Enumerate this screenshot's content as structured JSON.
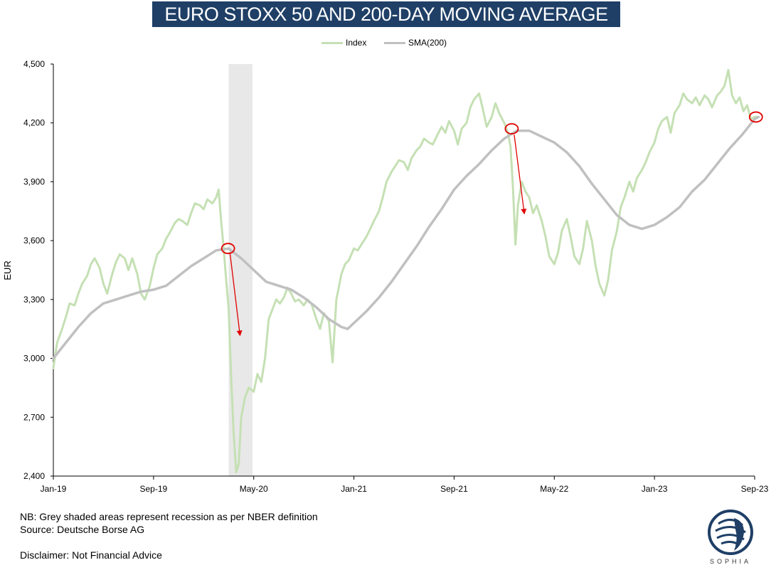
{
  "chart_data": {
    "type": "line",
    "title": "EURO STOXX 50 AND 200-DAY MOVING AVERAGE",
    "ylabel": "EUR",
    "xlabel": "",
    "ylim": [
      2400,
      4500
    ],
    "x_range": [
      "2019-01",
      "2023-09"
    ],
    "yticks": [
      2400,
      2700,
      3000,
      3300,
      3600,
      3900,
      4200,
      4500
    ],
    "ytick_labels": [
      "2,400",
      "2,700",
      "3,000",
      "3,300",
      "3,600",
      "3,900",
      "4,200",
      "4,500"
    ],
    "xticks": [
      {
        "label": "Jan-19",
        "m": 0
      },
      {
        "label": "Sep-19",
        "m": 8
      },
      {
        "label": "May-20",
        "m": 16
      },
      {
        "label": "Jan-21",
        "m": 24
      },
      {
        "label": "Sep-21",
        "m": 32
      },
      {
        "label": "May-22",
        "m": 40
      },
      {
        "label": "Jan-23",
        "m": 48
      },
      {
        "label": "Sep-23",
        "m": 56
      }
    ],
    "legend": [
      {
        "name": "Index",
        "color": "#c5e0b4"
      },
      {
        "name": "SMA(200)",
        "color": "#c0c0c0"
      }
    ],
    "recession": {
      "start_m": 14.0,
      "end_m": 15.9,
      "color": "#e8e8e8"
    },
    "series": [
      {
        "name": "Index",
        "color": "#c5e0b4",
        "points": [
          [
            0.0,
            2950
          ],
          [
            0.3,
            3080
          ],
          [
            0.7,
            3150
          ],
          [
            1.0,
            3210
          ],
          [
            1.3,
            3280
          ],
          [
            1.7,
            3270
          ],
          [
            2.0,
            3330
          ],
          [
            2.3,
            3380
          ],
          [
            2.7,
            3420
          ],
          [
            3.0,
            3480
          ],
          [
            3.3,
            3510
          ],
          [
            3.7,
            3460
          ],
          [
            4.0,
            3380
          ],
          [
            4.3,
            3330
          ],
          [
            4.7,
            3430
          ],
          [
            5.0,
            3490
          ],
          [
            5.3,
            3530
          ],
          [
            5.7,
            3510
          ],
          [
            6.0,
            3450
          ],
          [
            6.3,
            3510
          ],
          [
            6.7,
            3430
          ],
          [
            7.0,
            3330
          ],
          [
            7.3,
            3300
          ],
          [
            7.7,
            3370
          ],
          [
            8.0,
            3460
          ],
          [
            8.3,
            3530
          ],
          [
            8.7,
            3560
          ],
          [
            9.0,
            3610
          ],
          [
            9.3,
            3640
          ],
          [
            9.7,
            3690
          ],
          [
            10.0,
            3710
          ],
          [
            10.3,
            3700
          ],
          [
            10.7,
            3680
          ],
          [
            11.0,
            3740
          ],
          [
            11.3,
            3790
          ],
          [
            11.7,
            3780
          ],
          [
            12.0,
            3760
          ],
          [
            12.3,
            3810
          ],
          [
            12.7,
            3790
          ],
          [
            13.0,
            3820
          ],
          [
            13.2,
            3860
          ],
          [
            13.4,
            3700
          ],
          [
            13.6,
            3560
          ],
          [
            13.8,
            3400
          ],
          [
            14.0,
            3250
          ],
          [
            14.2,
            2900
          ],
          [
            14.4,
            2620
          ],
          [
            14.6,
            2420
          ],
          [
            14.8,
            2460
          ],
          [
            15.0,
            2700
          ],
          [
            15.3,
            2800
          ],
          [
            15.6,
            2850
          ],
          [
            16.0,
            2830
          ],
          [
            16.3,
            2920
          ],
          [
            16.6,
            2880
          ],
          [
            16.9,
            3000
          ],
          [
            17.2,
            3200
          ],
          [
            17.5,
            3250
          ],
          [
            17.8,
            3300
          ],
          [
            18.1,
            3280
          ],
          [
            18.4,
            3310
          ],
          [
            18.7,
            3360
          ],
          [
            19.0,
            3330
          ],
          [
            19.3,
            3290
          ],
          [
            19.6,
            3300
          ],
          [
            20.0,
            3270
          ],
          [
            20.3,
            3300
          ],
          [
            20.6,
            3280
          ],
          [
            21.0,
            3200
          ],
          [
            21.3,
            3150
          ],
          [
            21.6,
            3230
          ],
          [
            22.0,
            3190
          ],
          [
            22.3,
            2980
          ],
          [
            22.6,
            3300
          ],
          [
            23.0,
            3430
          ],
          [
            23.3,
            3480
          ],
          [
            23.6,
            3500
          ],
          [
            24.0,
            3560
          ],
          [
            24.3,
            3550
          ],
          [
            24.6,
            3580
          ],
          [
            25.0,
            3620
          ],
          [
            25.3,
            3660
          ],
          [
            25.6,
            3700
          ],
          [
            26.0,
            3750
          ],
          [
            26.3,
            3820
          ],
          [
            26.6,
            3900
          ],
          [
            27.0,
            3950
          ],
          [
            27.3,
            3980
          ],
          [
            27.6,
            4010
          ],
          [
            28.0,
            4000
          ],
          [
            28.3,
            3960
          ],
          [
            28.6,
            4020
          ],
          [
            29.0,
            4060
          ],
          [
            29.3,
            4080
          ],
          [
            29.6,
            4120
          ],
          [
            30.0,
            4100
          ],
          [
            30.3,
            4090
          ],
          [
            30.6,
            4130
          ],
          [
            31.0,
            4180
          ],
          [
            31.3,
            4150
          ],
          [
            31.6,
            4210
          ],
          [
            32.0,
            4160
          ],
          [
            32.3,
            4090
          ],
          [
            32.6,
            4170
          ],
          [
            33.0,
            4200
          ],
          [
            33.3,
            4280
          ],
          [
            33.6,
            4320
          ],
          [
            34.0,
            4350
          ],
          [
            34.3,
            4270
          ],
          [
            34.6,
            4180
          ],
          [
            35.0,
            4230
          ],
          [
            35.3,
            4300
          ],
          [
            35.6,
            4250
          ],
          [
            36.0,
            4200
          ],
          [
            36.3,
            4150
          ],
          [
            36.5,
            4080
          ],
          [
            36.7,
            3870
          ],
          [
            36.9,
            3580
          ],
          [
            37.1,
            3780
          ],
          [
            37.4,
            3900
          ],
          [
            37.7,
            3850
          ],
          [
            38.0,
            3820
          ],
          [
            38.3,
            3740
          ],
          [
            38.6,
            3780
          ],
          [
            39.0,
            3700
          ],
          [
            39.3,
            3620
          ],
          [
            39.6,
            3520
          ],
          [
            40.0,
            3480
          ],
          [
            40.3,
            3540
          ],
          [
            40.6,
            3650
          ],
          [
            41.0,
            3710
          ],
          [
            41.3,
            3620
          ],
          [
            41.6,
            3520
          ],
          [
            42.0,
            3480
          ],
          [
            42.3,
            3560
          ],
          [
            42.6,
            3700
          ],
          [
            43.0,
            3600
          ],
          [
            43.3,
            3470
          ],
          [
            43.6,
            3380
          ],
          [
            44.0,
            3320
          ],
          [
            44.3,
            3400
          ],
          [
            44.6,
            3550
          ],
          [
            45.0,
            3650
          ],
          [
            45.3,
            3770
          ],
          [
            45.6,
            3820
          ],
          [
            46.0,
            3900
          ],
          [
            46.3,
            3850
          ],
          [
            46.6,
            3920
          ],
          [
            47.0,
            3960
          ],
          [
            47.3,
            4000
          ],
          [
            47.6,
            4050
          ],
          [
            48.0,
            4100
          ],
          [
            48.3,
            4170
          ],
          [
            48.6,
            4210
          ],
          [
            49.0,
            4230
          ],
          [
            49.3,
            4150
          ],
          [
            49.6,
            4250
          ],
          [
            50.0,
            4290
          ],
          [
            50.3,
            4350
          ],
          [
            50.6,
            4320
          ],
          [
            51.0,
            4300
          ],
          [
            51.3,
            4330
          ],
          [
            51.6,
            4290
          ],
          [
            52.0,
            4340
          ],
          [
            52.3,
            4320
          ],
          [
            52.6,
            4280
          ],
          [
            53.0,
            4340
          ],
          [
            53.3,
            4360
          ],
          [
            53.6,
            4390
          ],
          [
            53.9,
            4470
          ],
          [
            54.2,
            4340
          ],
          [
            54.5,
            4300
          ],
          [
            54.8,
            4330
          ],
          [
            55.1,
            4260
          ],
          [
            55.4,
            4290
          ],
          [
            55.7,
            4220
          ],
          [
            56.0,
            4230
          ],
          [
            56.3,
            4230
          ]
        ]
      },
      {
        "name": "SMA(200)",
        "color": "#c0c0c0",
        "points": [
          [
            0.0,
            3000
          ],
          [
            1.0,
            3080
          ],
          [
            2.0,
            3160
          ],
          [
            3.0,
            3230
          ],
          [
            4.0,
            3280
          ],
          [
            5.0,
            3300
          ],
          [
            6.0,
            3320
          ],
          [
            7.0,
            3340
          ],
          [
            8.0,
            3350
          ],
          [
            9.0,
            3370
          ],
          [
            10.0,
            3420
          ],
          [
            11.0,
            3470
          ],
          [
            12.0,
            3510
          ],
          [
            13.0,
            3550
          ],
          [
            14.0,
            3560
          ],
          [
            15.0,
            3510
          ],
          [
            16.0,
            3450
          ],
          [
            17.0,
            3390
          ],
          [
            18.0,
            3370
          ],
          [
            19.0,
            3350
          ],
          [
            20.0,
            3310
          ],
          [
            21.0,
            3260
          ],
          [
            22.0,
            3200
          ],
          [
            23.0,
            3160
          ],
          [
            23.5,
            3150
          ],
          [
            24.0,
            3180
          ],
          [
            25.0,
            3240
          ],
          [
            26.0,
            3310
          ],
          [
            27.0,
            3390
          ],
          [
            28.0,
            3480
          ],
          [
            29.0,
            3570
          ],
          [
            30.0,
            3670
          ],
          [
            31.0,
            3760
          ],
          [
            32.0,
            3860
          ],
          [
            33.0,
            3930
          ],
          [
            34.0,
            3990
          ],
          [
            35.0,
            4060
          ],
          [
            36.0,
            4120
          ],
          [
            37.0,
            4160
          ],
          [
            38.0,
            4160
          ],
          [
            39.0,
            4130
          ],
          [
            40.0,
            4100
          ],
          [
            41.0,
            4050
          ],
          [
            42.0,
            3980
          ],
          [
            43.0,
            3890
          ],
          [
            44.0,
            3810
          ],
          [
            45.0,
            3730
          ],
          [
            46.0,
            3680
          ],
          [
            47.0,
            3660
          ],
          [
            48.0,
            3680
          ],
          [
            49.0,
            3720
          ],
          [
            50.0,
            3770
          ],
          [
            51.0,
            3850
          ],
          [
            52.0,
            3910
          ],
          [
            53.0,
            3990
          ],
          [
            54.0,
            4070
          ],
          [
            55.0,
            4140
          ],
          [
            56.0,
            4220
          ],
          [
            56.3,
            4230
          ]
        ]
      }
    ],
    "markers": [
      {
        "m": 13.95,
        "value": 3560,
        "color": "#e00000"
      },
      {
        "m": 36.6,
        "value": 4170,
        "color": "#e00000"
      },
      {
        "m": 56.1,
        "value": 4230,
        "color": "#e00000"
      }
    ],
    "arrows": [
      {
        "from": [
          14.1,
          3540
        ],
        "to": [
          14.9,
          3120
        ],
        "color": "#e00000"
      },
      {
        "from": [
          36.8,
          4140
        ],
        "to": [
          37.6,
          3740
        ],
        "color": "#e00000"
      }
    ]
  },
  "notes": [
    "NB: Grey shaded areas represent recession as per NBER definition",
    "Source: Deutsche Borse AG"
  ],
  "disclaimer": "Disclaimer: Not Financial Advice",
  "logo_text": "SOPHIA"
}
